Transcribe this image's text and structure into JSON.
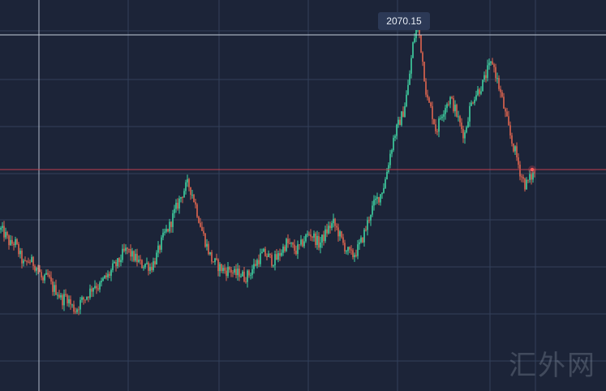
{
  "chart_data": {
    "type": "candlestick",
    "title": "",
    "xlabel": "",
    "ylabel": "",
    "ylim": [
      1620,
      2095
    ],
    "grid": true,
    "colors": {
      "background": "#1c2438",
      "grid": "#33405a",
      "up": "#3fd3a2",
      "down": "#e0664f",
      "price_line": "#c0414f",
      "crosshair": "#c6cfdc",
      "tooltip_bg": "#2c3956"
    },
    "crosshair_value_label": "2070.15",
    "current_price_level": 1889,
    "close_series": [
      1816,
      1809,
      1798,
      1801,
      1786,
      1772,
      1779,
      1775,
      1768,
      1752,
      1760,
      1745,
      1742,
      1730,
      1736,
      1724,
      1718,
      1728,
      1733,
      1741,
      1750,
      1746,
      1756,
      1760,
      1770,
      1775,
      1786,
      1792,
      1784,
      1780,
      1773,
      1775,
      1770,
      1780,
      1796,
      1811,
      1820,
      1836,
      1850,
      1863,
      1872,
      1858,
      1836,
      1814,
      1796,
      1780,
      1774,
      1769,
      1766,
      1768,
      1761,
      1764,
      1758,
      1762,
      1771,
      1780,
      1787,
      1784,
      1778,
      1781,
      1791,
      1800,
      1796,
      1790,
      1796,
      1806,
      1812,
      1806,
      1798,
      1808,
      1818,
      1824,
      1814,
      1800,
      1790,
      1784,
      1790,
      1802,
      1818,
      1838,
      1850,
      1858,
      1873,
      1904,
      1930,
      1945,
      1960,
      1990,
      2040,
      2070,
      2025,
      1975,
      1960,
      1935,
      1955,
      1968,
      1975,
      1962,
      1945,
      1930,
      1960,
      1978,
      1985,
      1994,
      2010,
      2020,
      1998,
      1975,
      1950,
      1925,
      1908,
      1884,
      1870,
      1878,
      1886
    ]
  }
}
